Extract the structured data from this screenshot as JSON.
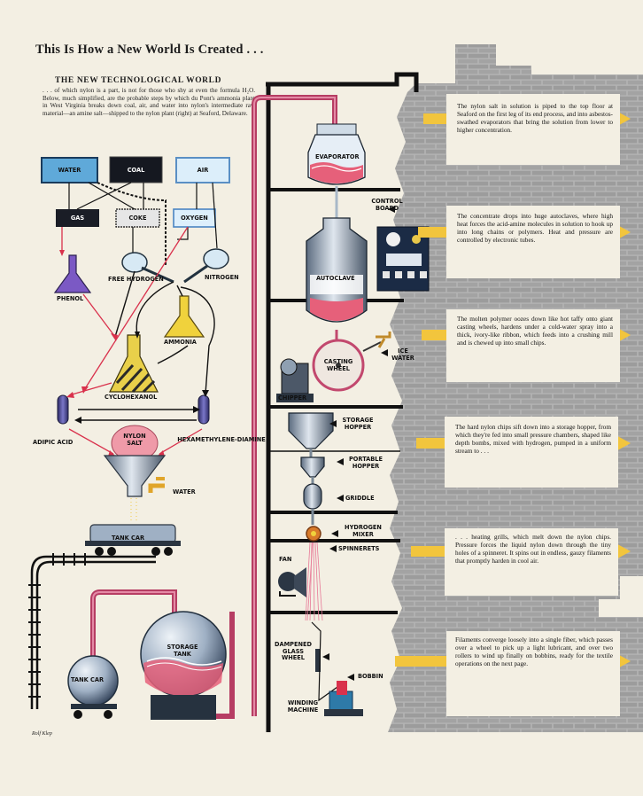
{
  "page": {
    "title": "This Is How a New World Is Created . . .",
    "heading": "THE NEW TECHNOLOGICAL WORLD",
    "intro": ". . . of which nylon is a part, is not for those who shy at even the formula H₂O. Below, much simplified, are the probable steps by which du Pont's ammonia plant in West Virginia breaks down coal, air, and water into nylon's intermediate raw material—an amine salt—shipped to the nylon plant (right) at Seaford, Delaware.",
    "credit": "Rolf Klep"
  },
  "chemistry": {
    "water": "WATER",
    "coal": "COAL",
    "air": "AIR",
    "gas": "GAS",
    "coke": "COKE",
    "oxygen": "OXYGEN",
    "free_hydrogen": "FREE HYDROGEN",
    "nitrogen": "NITROGEN",
    "phenol": "PHENOL",
    "ammonia": "AMMONIA",
    "cyclohexanol": "CYCLOHEXANOL",
    "adipic_acid": "ADIPIC ACID",
    "nylon_salt": "NYLON SALT",
    "hexamethylene_diamine": "HEXAMETHYLENE-DIAMINE",
    "water_tap": "WATER",
    "tank_car_top": "TANK CAR",
    "tank_car_bottom": "TANK CAR",
    "storage_tank": "STORAGE TANK"
  },
  "plant": {
    "evaporator": "EVAPORATOR",
    "control_board": "CONTROL BOARD",
    "autoclave": "AUTOCLAVE",
    "ice_water": "ICE WATER",
    "casting_wheel": "CASTING WHEEL",
    "chipper": "CHIPPER",
    "storage_hopper": "STORAGE HOPPER",
    "portable_hopper": "PORTABLE HOPPER",
    "griddle": "GRIDDLE",
    "hydrogen_mixer": "HYDROGEN MIXER",
    "spinnerets": "SPINNERETS",
    "fan": "FAN",
    "dampened_glass_wheel": "DAMPENED GLASS WHEEL",
    "bobbin": "BOBBIN",
    "winding_machine": "WINDING MACHINE"
  },
  "captions": [
    "The nylon salt in solution is piped to the top floor at Seaford on the first leg of its end process, and into asbestos-swathed evaporators that bring the solution from lower to higher concentration.",
    "The concentrate drops into huge autoclaves, where high heat forces the acid-amine molecules in solution to hook up into long chains or polymers. Heat and pressure are controlled by electronic tubes.",
    "The molten polymer oozes down like hot taffy onto giant casting wheels, hardens under a cold-water spray into a thick, ivory-like ribbon, which feeds into a crushing mill and is chewed up into small chips.",
    "The hard nylon chips sift down into a storage hopper, from which they're fed into small pressure chambers, shaped like depth bombs, mixed with hydrogen, pumped in a uniform stream to . . .",
    ". . . heating grills, which melt down the nylon chips. Pressure forces the liquid nylon down through the tiny holes of a spinneret. It spins out in endless, gauzy filaments that promptly harden in cool air.",
    "Filaments converge loosely into a single fiber, which passes over a wheel to pick up a light lubricant, and over two rollers to wind up finally on bobbins, ready for the textile operations on the next page."
  ],
  "colors": {
    "paper": "#f3efe3",
    "pipe": "#c2486e",
    "brick": "#a6a6a6",
    "arrow": "#f2c53d",
    "navy": "#16243e",
    "flask_purple": "#7b59c4",
    "flask_yellow": "#f0d23c",
    "salt_pink": "#ef9aa8"
  }
}
